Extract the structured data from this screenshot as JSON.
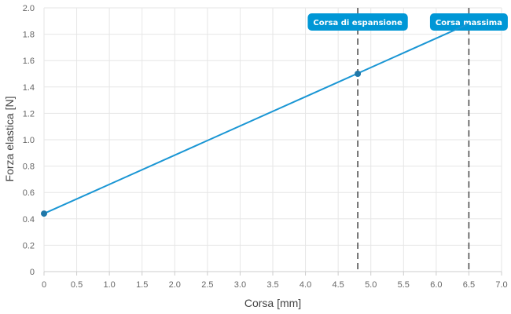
{
  "chart_data": {
    "type": "line",
    "xlabel": "Corsa [mm]",
    "ylabel": "Forza elastica [N]",
    "xlim": [
      0,
      7
    ],
    "ylim": [
      0,
      2
    ],
    "xticks": [
      0,
      0.5,
      1,
      1.5,
      2,
      2.5,
      3,
      3.5,
      4,
      4.5,
      5,
      5.5,
      6,
      6.5,
      7
    ],
    "xtick_labels": [
      "0",
      "0.5",
      "1.0",
      "1.5",
      "2.0",
      "2.5",
      "3.0",
      "3.5",
      "4.0",
      "4.5",
      "5.0",
      "5.5",
      "6.0",
      "6.5",
      "7.0"
    ],
    "yticks": [
      0,
      0.2,
      0.4,
      0.6,
      0.8,
      1.0,
      1.2,
      1.4,
      1.6,
      1.8,
      2.0
    ],
    "ytick_labels": [
      "0",
      "0.2",
      "0.4",
      "0.6",
      "0.8",
      "1.0",
      "1.2",
      "1.4",
      "1.6",
      "1.8",
      "2.0"
    ],
    "grid": true,
    "series": [
      {
        "color": "#1a96d4",
        "x": [
          0,
          6.5
        ],
        "y": [
          0.44,
          1.88
        ],
        "points": [
          {
            "x": 0,
            "y": 0.44
          },
          {
            "x": 4.8,
            "y": 1.5
          }
        ]
      }
    ],
    "markers": [
      {
        "label": "Corsa di espansione",
        "x": 4.8
      },
      {
        "label": "Corsa massima",
        "x": 6.5
      }
    ],
    "marker_label_color": "#0097d6",
    "marker_line_color": "#444444"
  }
}
